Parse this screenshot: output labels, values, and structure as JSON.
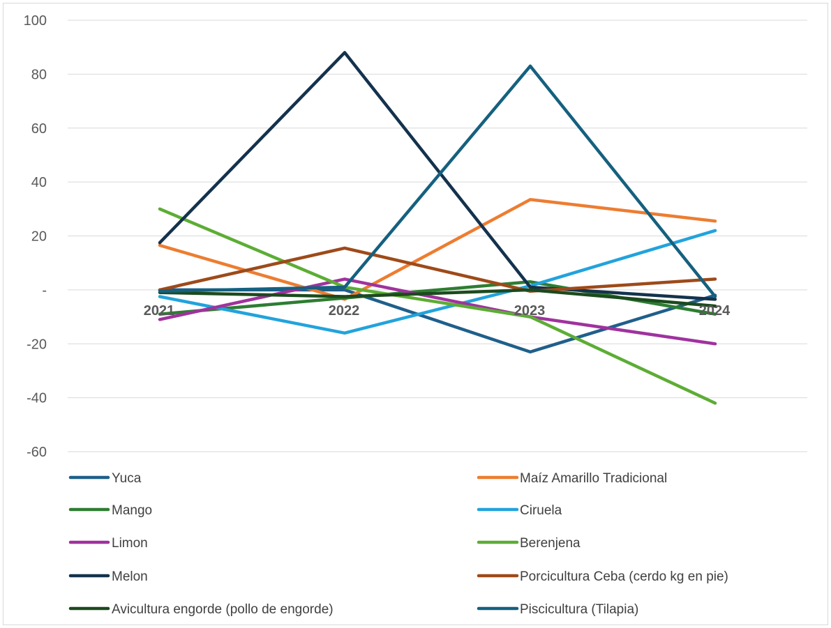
{
  "chart_data": {
    "type": "line",
    "title": "",
    "xlabel": "",
    "ylabel": "",
    "x": [
      "2021",
      "2022",
      "2023",
      "2024"
    ],
    "ylim": [
      -60,
      100
    ],
    "yticks": [
      {
        "value": 100,
        "label": "100"
      },
      {
        "value": 80,
        "label": "80"
      },
      {
        "value": 60,
        "label": "60"
      },
      {
        "value": 40,
        "label": "40"
      },
      {
        "value": 20,
        "label": "20"
      },
      {
        "value": 0,
        "label": "-"
      },
      {
        "value": -20,
        "label": "-20"
      },
      {
        "value": -40,
        "label": "-40"
      },
      {
        "value": -60,
        "label": "-60"
      }
    ],
    "grid": true,
    "legend": "bottom",
    "series": [
      {
        "name": "Yuca",
        "color": "#1f5f8b",
        "values": [
          0,
          0,
          -23,
          -2
        ]
      },
      {
        "name": "Maíz Amarillo Tradicional",
        "color": "#ed7d31",
        "values": [
          16.5,
          -3.5,
          33.5,
          25.5
        ]
      },
      {
        "name": "Mango",
        "color": "#2e7d32",
        "values": [
          -9,
          -3,
          3,
          -9
        ]
      },
      {
        "name": "Ciruela",
        "color": "#22a3dc",
        "values": [
          -2.5,
          -16,
          1.5,
          22
        ]
      },
      {
        "name": "Limon",
        "color": "#a0329e",
        "values": [
          -11,
          4,
          -10,
          -20
        ]
      },
      {
        "name": "Berenjena",
        "color": "#5cad35",
        "values": [
          30,
          1,
          -10,
          -42
        ]
      },
      {
        "name": "Melon",
        "color": "#14324d",
        "values": [
          17.5,
          88,
          1,
          -3.5
        ]
      },
      {
        "name": "Porcicultura Ceba (cerdo kg en pie)",
        "color": "#9e4a1a",
        "values": [
          0,
          15.5,
          -0.5,
          4
        ]
      },
      {
        "name": "Avicultura engorde (pollo de engorde)",
        "color": "#1c4a1d",
        "values": [
          -1,
          -2.5,
          0,
          -6
        ]
      },
      {
        "name": "Piscicultura (Tilapia)",
        "color": "#15607f",
        "values": [
          -0.5,
          1,
          83,
          -2.5
        ]
      }
    ]
  }
}
